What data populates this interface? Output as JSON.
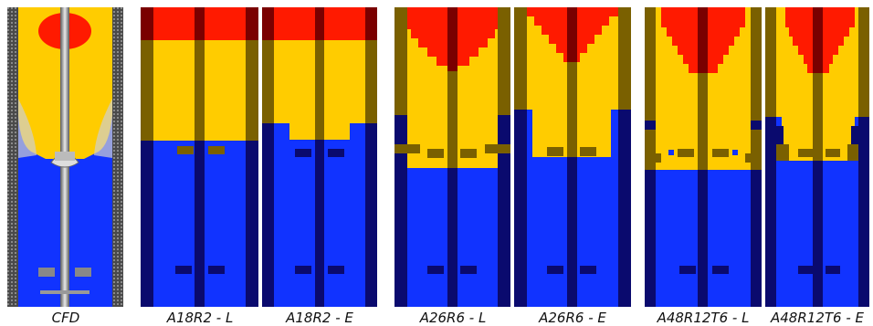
{
  "figure": {
    "colors": {
      "red": "#ff1a00",
      "yellow": "#ffcc00",
      "blue": "#1133ff",
      "navy": "#0a0a6e",
      "olive": "#7a6000",
      "maroon": "#7a0000",
      "gray": "#9a9a9a"
    },
    "panels": [
      {
        "id": "cfd",
        "label": "CFD"
      },
      {
        "id": "a18r2-l",
        "label": "A18R2 - L"
      },
      {
        "id": "a18r2-e",
        "label": "A18R2 - E"
      },
      {
        "id": "a26r6-l",
        "label": "A26R6 - L"
      },
      {
        "id": "a26r6-e",
        "label": "A26R6 - E"
      },
      {
        "id": "a48r12t6-l",
        "label": "A48R12T6 - L"
      },
      {
        "id": "a48r12t6-e",
        "label": "A48R12T6 - E"
      }
    ]
  }
}
